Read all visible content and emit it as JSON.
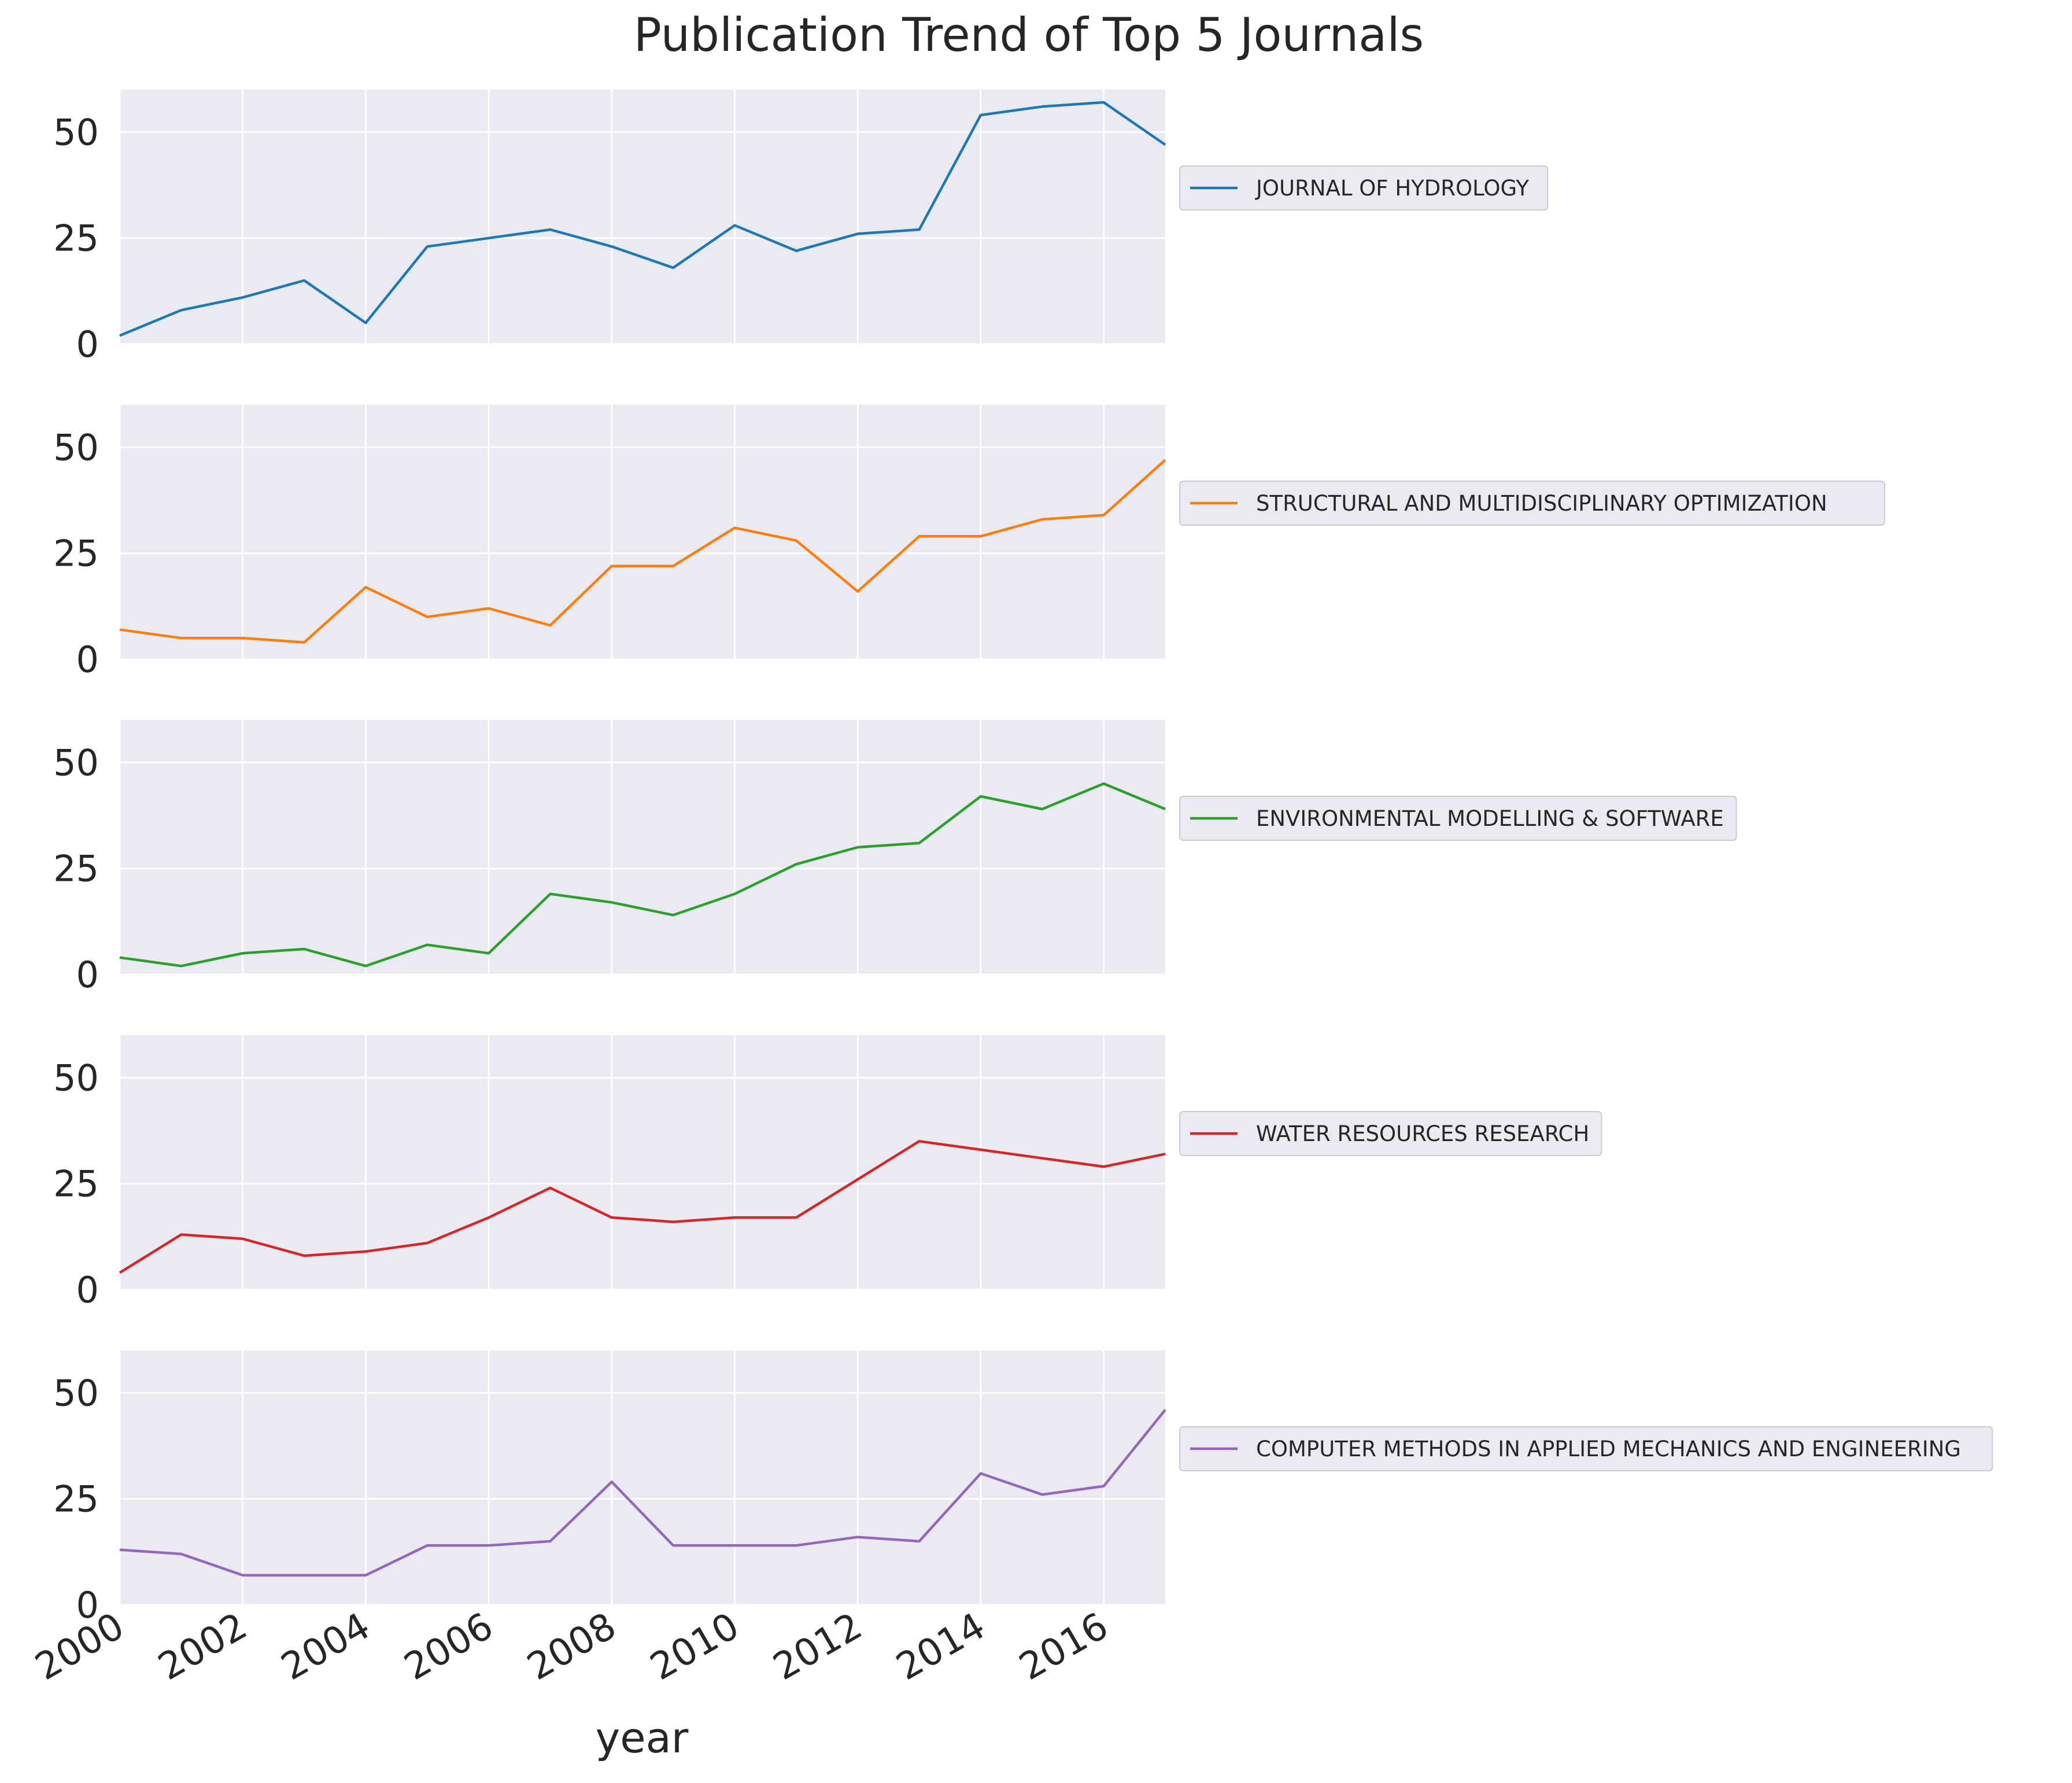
{
  "chart_data": {
    "type": "line",
    "title": "Publication Trend of Top 5 Journals",
    "xlabel": "year",
    "ylabel": "",
    "x": [
      2000,
      2001,
      2002,
      2003,
      2004,
      2005,
      2006,
      2007,
      2008,
      2009,
      2010,
      2011,
      2012,
      2013,
      2014,
      2015,
      2016,
      2017
    ],
    "xlim": [
      2000,
      2017
    ],
    "ylim": [
      0,
      60
    ],
    "x_ticks": [
      "2000",
      "2002",
      "2004",
      "2006",
      "2008",
      "2010",
      "2012",
      "2014",
      "2016"
    ],
    "y_ticks": [
      "0",
      "25",
      "50"
    ],
    "grid": true,
    "legend_position": "right",
    "layout": "5 stacked subplots sharing x axis",
    "series": [
      {
        "name": "JOURNAL OF HYDROLOGY",
        "color": "#1f77b4",
        "values": [
          2,
          8,
          11,
          15,
          5,
          23,
          25,
          27,
          23,
          18,
          28,
          22,
          26,
          27,
          54,
          56,
          57,
          47
        ]
      },
      {
        "name": "STRUCTURAL AND MULTIDISCIPLINARY OPTIMIZATION",
        "color": "#ff7f0e",
        "values": [
          7,
          5,
          5,
          4,
          17,
          10,
          12,
          8,
          22,
          22,
          31,
          28,
          16,
          29,
          29,
          33,
          34,
          47
        ]
      },
      {
        "name": "ENVIRONMENTAL MODELLING & SOFTWARE",
        "color": "#2ca02c",
        "values": [
          4,
          2,
          5,
          6,
          2,
          7,
          5,
          19,
          17,
          14,
          19,
          26,
          30,
          31,
          42,
          39,
          45,
          39
        ]
      },
      {
        "name": "WATER RESOURCES RESEARCH",
        "color": "#d62728",
        "values": [
          4,
          13,
          12,
          8,
          9,
          11,
          17,
          24,
          17,
          16,
          17,
          17,
          26,
          35,
          33,
          31,
          29,
          32
        ]
      },
      {
        "name": "COMPUTER METHODS IN APPLIED MECHANICS AND ENGINEERING",
        "color": "#9467bd",
        "values": [
          13,
          12,
          7,
          7,
          7,
          14,
          14,
          15,
          29,
          14,
          14,
          14,
          16,
          15,
          31,
          26,
          28,
          46
        ]
      }
    ]
  },
  "style": {
    "panel_background": "#eaeaf2",
    "grid_color": "#ffffff",
    "text_color": "#262626",
    "legend_background": "#eaeaf2",
    "legend_border": "#cccccc"
  }
}
